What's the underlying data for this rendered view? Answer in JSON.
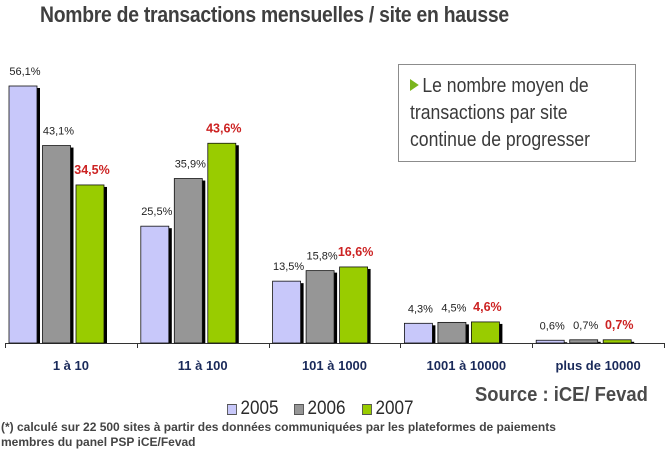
{
  "chart_data": {
    "type": "bar",
    "title": "Nombre de transactions mensuelles / site en hausse",
    "xlabel": "",
    "ylabel": "",
    "categories": [
      "1 à 10",
      "11 à 100",
      "101 à 1000",
      "1001 à 10000",
      "plus de 10000"
    ],
    "series": [
      {
        "name": "2005",
        "color": "#c8c8fa",
        "values": [
          56.1,
          25.5,
          13.5,
          4.3,
          0.6
        ],
        "labels": [
          "56,1%",
          "25,5%",
          "13,5%",
          "4,3%",
          "0,6%"
        ],
        "label_color": "#222222",
        "label_bold": false
      },
      {
        "name": "2006",
        "color": "#969696",
        "values": [
          43.1,
          35.9,
          15.8,
          4.5,
          0.7
        ],
        "labels": [
          "43,1%",
          "35,9%",
          "15,8%",
          "4,5%",
          "0,7%"
        ],
        "label_color": "#222222",
        "label_bold": false
      },
      {
        "name": "2007",
        "color": "#99cc00",
        "values": [
          34.5,
          43.6,
          16.6,
          4.6,
          0.7
        ],
        "labels": [
          "34,5%",
          "43,6%",
          "16,6%",
          "4,6%",
          "0,7%"
        ],
        "label_color": "#cc2222",
        "label_bold": true
      }
    ],
    "ylim": [
      0,
      60
    ],
    "grid": false,
    "legend_position": "bottom",
    "category_label_color": "#1a2a5a"
  },
  "callout": {
    "lines": [
      "Le nombre moyen de",
      "transactions par site",
      "continue de progresser"
    ],
    "bullet_color": "#7ab51d"
  },
  "source": "Source : iCE/ Fevad",
  "footnote": {
    "line1": "(*) calculé sur 22 500 sites à partir des données communiquées par les plateformes de paiements",
    "line2": "membres du panel PSP iCE/Fevad"
  }
}
